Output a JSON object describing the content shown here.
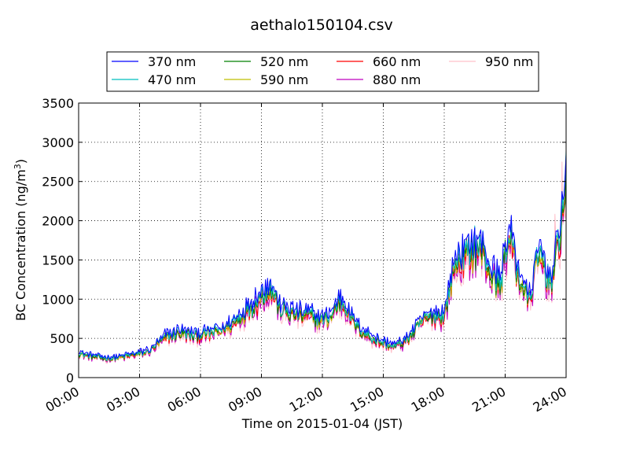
{
  "chart_data": {
    "type": "line",
    "title": "aethalo150104.csv",
    "xlabel": "Time on 2015-01-04 (JST)",
    "ylabel": "BC Concentration (ng/m",
    "ylabel_superscript": "3",
    "ylabel_suffix": ")",
    "xlim": [
      0,
      24
    ],
    "ylim": [
      0,
      3500
    ],
    "x_ticks": [
      0,
      3,
      6,
      9,
      12,
      15,
      18,
      21,
      24
    ],
    "x_tick_labels": [
      "00:00",
      "03:00",
      "06:00",
      "09:00",
      "12:00",
      "15:00",
      "18:00",
      "21:00",
      "24:00"
    ],
    "y_ticks": [
      0,
      500,
      1000,
      1500,
      2000,
      2500,
      3000,
      3500
    ],
    "y_tick_labels": [
      "0",
      "500",
      "1000",
      "1500",
      "2000",
      "2500",
      "3000",
      "3500"
    ],
    "grid": true,
    "legend_placement": "top, above plot (4 columns)",
    "series": [
      {
        "name": "370 nm",
        "color": "#0000ff"
      },
      {
        "name": "470 nm",
        "color": "#00bfbf"
      },
      {
        "name": "520 nm",
        "color": "#008000"
      },
      {
        "name": "590 nm",
        "color": "#bfbf00"
      },
      {
        "name": "660 nm",
        "color": "#ff0000"
      },
      {
        "name": "880 nm",
        "color": "#bf00bf"
      },
      {
        "name": "950 nm",
        "color": "#ffc0cb"
      }
    ],
    "base_profile": {
      "x": [
        0,
        0.5,
        1,
        1.5,
        2,
        2.5,
        3,
        3.5,
        4,
        4.3,
        4.6,
        5,
        5.5,
        6,
        6.5,
        7,
        7.5,
        8,
        8.5,
        9,
        9.3,
        9.6,
        9.9,
        10.3,
        10.8,
        11.3,
        11.8,
        12.2,
        12.5,
        12.8,
        13.1,
        13.5,
        14,
        14.5,
        15,
        15.5,
        16,
        16.5,
        17,
        17.5,
        18,
        18.3,
        18.6,
        19,
        19.5,
        19.9,
        20.2,
        20.5,
        20.8,
        21.0,
        21.3,
        21.6,
        21.9,
        22.2,
        22.5,
        22.8,
        23.1,
        23.4,
        23.7,
        24.0
      ],
      "y": [
        300,
        270,
        250,
        230,
        250,
        270,
        290,
        330,
        430,
        500,
        520,
        560,
        520,
        520,
        540,
        580,
        640,
        760,
        880,
        1000,
        1100,
        1050,
        850,
        800,
        780,
        760,
        720,
        720,
        780,
        950,
        900,
        700,
        560,
        480,
        430,
        380,
        440,
        560,
        720,
        760,
        760,
        1150,
        1400,
        1500,
        1600,
        1550,
        1350,
        1200,
        1150,
        1600,
        1700,
        1300,
        1100,
        950,
        1350,
        1500,
        1200,
        1300,
        1800,
        2400
      ]
    },
    "series_offsets": [
      120,
      60,
      30,
      20,
      0,
      -10,
      -30
    ]
  }
}
